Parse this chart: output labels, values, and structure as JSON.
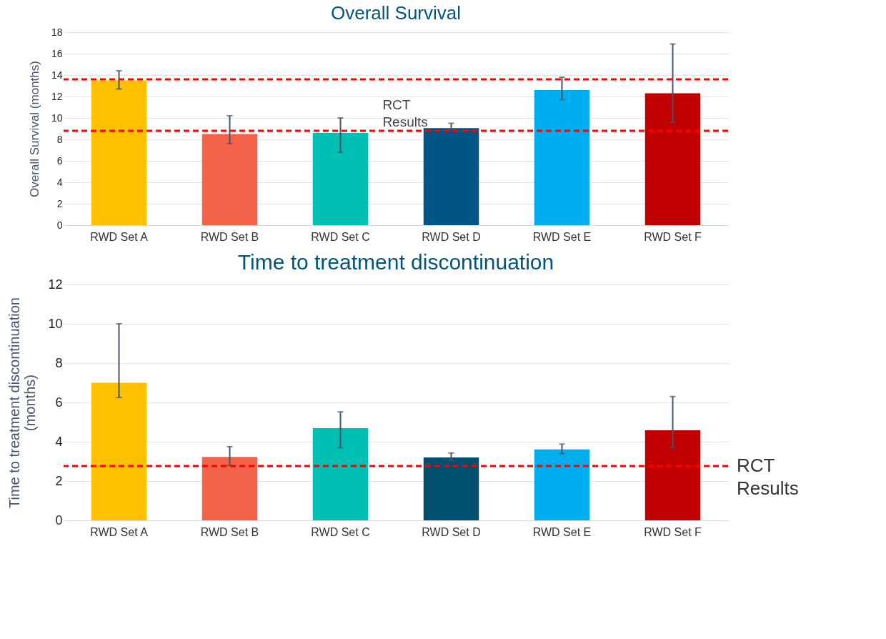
{
  "chart_data": [
    {
      "type": "bar",
      "title": "Overall Survival",
      "ylabel": "Overall Survival (months)",
      "categories": [
        "RWD Set A",
        "RWD Set B",
        "RWD Set C",
        "RWD Set D",
        "RWD Set E",
        "RWD Set F"
      ],
      "values": [
        13.5,
        8.5,
        8.6,
        9.05,
        12.6,
        12.3
      ],
      "colors": [
        "#ffc000",
        "#f5624a",
        "#00bfb3",
        "#005587",
        "#00aeef",
        "#c00000"
      ],
      "errors": [
        [
          12.7,
          14.4
        ],
        [
          7.6,
          10.2
        ],
        [
          6.8,
          10.0
        ],
        [
          8.9,
          9.5
        ],
        [
          11.7,
          13.8
        ],
        [
          9.6,
          16.9
        ]
      ],
      "ylim": [
        0,
        18
      ],
      "yticks": [
        0,
        2,
        4,
        6,
        8,
        10,
        12,
        14,
        16,
        18
      ],
      "grid": true,
      "ref_lines": [
        {
          "axis": "y",
          "value": 13.6,
          "label": null,
          "color": "#ff0000",
          "line_style": "dashed"
        },
        {
          "axis": "y",
          "value": 8.8,
          "label": null,
          "color": "#ff0000",
          "line_style": "dashed"
        }
      ],
      "annotations": [
        "RCT Results"
      ]
    },
    {
      "type": "bar",
      "title": "Time to treatment discontinuation",
      "ylabel": "Time to treatment discontinuation (months)",
      "categories": [
        "RWD Set A",
        "RWD Set B",
        "RWD Set C",
        "RWD Set D",
        "RWD Set E",
        "RWD Set F"
      ],
      "values": [
        7.0,
        3.23,
        4.69,
        3.2,
        3.61,
        4.58
      ],
      "colors": [
        "#ffc000",
        "#f5624a",
        "#00bfb3",
        "#004f6e",
        "#00aeef",
        "#c00000"
      ],
      "errors": [
        [
          6.25,
          10.0
        ],
        [
          2.8,
          3.75
        ],
        [
          3.7,
          5.52
        ],
        [
          3.05,
          3.43
        ],
        [
          3.4,
          3.88
        ],
        [
          3.7,
          6.3
        ]
      ],
      "ylim": [
        0,
        12
      ],
      "yticks": [
        0,
        2,
        4,
        6,
        8,
        10,
        12
      ],
      "grid": true,
      "ref_lines": [
        {
          "axis": "y",
          "value": 2.76,
          "label": "RCT Results",
          "color": "#ff0000",
          "line_style": "dashed"
        }
      ]
    }
  ]
}
